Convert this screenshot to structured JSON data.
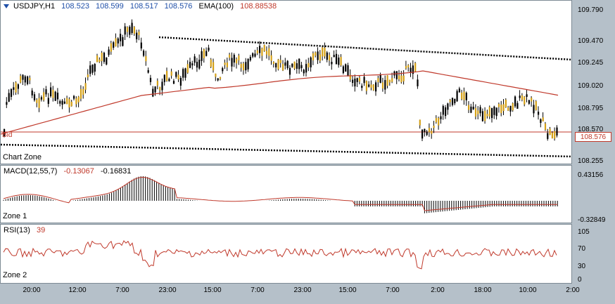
{
  "symbol": "USDJPY,H1",
  "ohlc": {
    "open": "108.523",
    "high": "108.599",
    "low": "108.517",
    "close": "108.576"
  },
  "ema_label": "EMA(100)",
  "ema_value": "108.88538",
  "bid_label": "Bid",
  "chart_zone_label": "Chart Zone",
  "price_scale": [
    "109.790",
    "109.470",
    "109.245",
    "109.020",
    "108.795",
    "108.570",
    "108.255"
  ],
  "current_price": "108.576",
  "macd": {
    "label": "MACD(12,55,7)",
    "v1": "-0.13067",
    "v2": "-0.16831",
    "zone": "Zone 1",
    "scale_top": "0.43156",
    "scale_bottom": "-0.32849"
  },
  "rsi": {
    "label": "RSI(13)",
    "value": "39",
    "zone": "Zone 2",
    "scale": [
      "105",
      "70",
      "30",
      "0"
    ]
  },
  "time_axis": [
    "20:00",
    "12:00",
    "7:00",
    "23:00",
    "15:00",
    "7:00",
    "23:00",
    "15:00",
    "7:00",
    "2:00",
    "18:00",
    "10:00",
    "2:00"
  ],
  "colors": {
    "candle_up": "#000000",
    "candle_body": "#d4a017",
    "ema": "#c0392b",
    "trendline": "#000000",
    "macd_signal": "#c0392b",
    "rsi": "#c0392b"
  }
}
